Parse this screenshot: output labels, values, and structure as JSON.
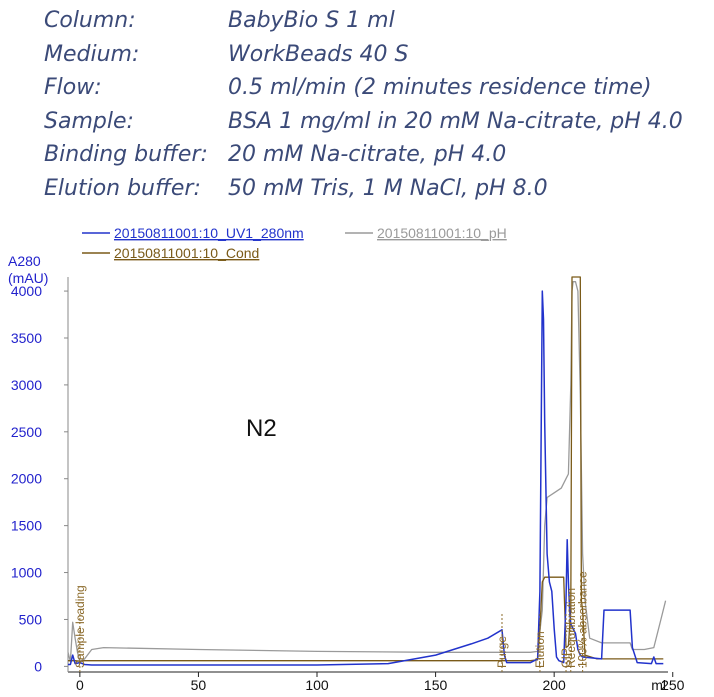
{
  "info": [
    {
      "label": "Column:",
      "value": "BabyBio S 1 ml"
    },
    {
      "label": "Medium:",
      "value": "WorkBeads 40 S"
    },
    {
      "label": "Flow:",
      "value": "0.5 ml/min (2 minutes residence time)"
    },
    {
      "label": "Sample:",
      "value": "BSA 1 mg/ml in 20 mM Na-citrate, pH 4.0"
    },
    {
      "label": "Binding buffer:",
      "value": "20 mM Na-citrate, pH 4.0"
    },
    {
      "label": "Elution buffer:",
      "value": "50 mM Tris, 1 M NaCl, pH 8.0"
    }
  ],
  "colors": {
    "uv": "#2233cc",
    "ph": "#9a9a9a",
    "cond": "#7a5a18",
    "axis": "#2222cc",
    "marker": "#8b6a2a"
  },
  "chart_data": {
    "type": "line",
    "xlabel": "ml",
    "ylabel": "A280\n(mAU)",
    "xlim": [
      -5,
      248
    ],
    "ylim": [
      -60,
      4150
    ],
    "x_ticks": [
      0,
      50,
      100,
      150,
      200,
      250
    ],
    "y_ticks": [
      0,
      500,
      1000,
      1500,
      2000,
      2500,
      3000,
      3500,
      4000
    ],
    "annotation": "N2",
    "legend": [
      {
        "series": "uv",
        "name": "20150811001:10_UV1_280nm"
      },
      {
        "series": "ph",
        "name": "20150811001:10_pH"
      },
      {
        "series": "cond",
        "name": "20150811001:10_Cond"
      }
    ],
    "markers": [
      {
        "x": 0,
        "label": "Sample loading"
      },
      {
        "x": 178,
        "label": "Purge"
      },
      {
        "x": 194,
        "label": "Elution"
      },
      {
        "x": 205,
        "label": "CIP"
      },
      {
        "x": 207,
        "label": "Reequilibration"
      },
      {
        "x": 212,
        "label": "100% absorbance"
      }
    ],
    "series": [
      {
        "key": "uv",
        "points": [
          [
            -5,
            20
          ],
          [
            -4,
            20
          ],
          [
            -3,
            120
          ],
          [
            -2,
            30
          ],
          [
            0,
            40
          ],
          [
            2,
            20
          ],
          [
            5,
            15
          ],
          [
            50,
            15
          ],
          [
            100,
            15
          ],
          [
            130,
            30
          ],
          [
            150,
            120
          ],
          [
            165,
            240
          ],
          [
            172,
            300
          ],
          [
            178,
            390
          ],
          [
            179,
            120
          ],
          [
            180,
            40
          ],
          [
            190,
            40
          ],
          [
            193,
            80
          ],
          [
            194,
            800
          ],
          [
            195,
            4000
          ],
          [
            195.5,
            3700
          ],
          [
            196,
            2600
          ],
          [
            197,
            1200
          ],
          [
            198,
            900
          ],
          [
            199,
            800
          ],
          [
            200,
            400
          ],
          [
            201,
            100
          ],
          [
            202,
            60
          ],
          [
            204,
            40
          ],
          [
            205,
            700
          ],
          [
            205.5,
            1350
          ],
          [
            206,
            900
          ],
          [
            206.5,
            600
          ],
          [
            207,
            450
          ],
          [
            209,
            350
          ],
          [
            210,
            180
          ],
          [
            211,
            120
          ],
          [
            212,
            100
          ],
          [
            220,
            80
          ],
          [
            221,
            600
          ],
          [
            232,
            600
          ],
          [
            233,
            200
          ],
          [
            235,
            40
          ],
          [
            241,
            30
          ],
          [
            242,
            100
          ],
          [
            243,
            30
          ],
          [
            246,
            30
          ]
        ]
      },
      {
        "key": "ph",
        "points": [
          [
            -5,
            150
          ],
          [
            -4,
            50
          ],
          [
            -3,
            470
          ],
          [
            -2,
            300
          ],
          [
            -1,
            150
          ],
          [
            0,
            50
          ],
          [
            2,
            80
          ],
          [
            5,
            180
          ],
          [
            10,
            200
          ],
          [
            50,
            180
          ],
          [
            100,
            160
          ],
          [
            150,
            150
          ],
          [
            180,
            150
          ],
          [
            190,
            150
          ],
          [
            193,
            160
          ],
          [
            195,
            600
          ],
          [
            196,
            1500
          ],
          [
            197,
            1800
          ],
          [
            200,
            1850
          ],
          [
            203,
            1900
          ],
          [
            205,
            2000
          ],
          [
            206,
            2050
          ],
          [
            207,
            3000
          ],
          [
            207.5,
            4000
          ],
          [
            208,
            4100
          ],
          [
            209,
            4100
          ],
          [
            210,
            4000
          ],
          [
            211,
            2900
          ],
          [
            212,
            1200
          ],
          [
            213,
            700
          ],
          [
            215,
            300
          ],
          [
            220,
            250
          ],
          [
            232,
            250
          ],
          [
            233,
            180
          ],
          [
            238,
            180
          ],
          [
            242,
            200
          ],
          [
            245,
            500
          ],
          [
            247,
            700
          ]
        ]
      },
      {
        "key": "cond",
        "points": [
          [
            -5,
            60
          ],
          [
            -2,
            60
          ],
          [
            0,
            55
          ],
          [
            2,
            60
          ],
          [
            50,
            60
          ],
          [
            100,
            60
          ],
          [
            150,
            60
          ],
          [
            180,
            60
          ],
          [
            190,
            60
          ],
          [
            193,
            70
          ],
          [
            194,
            400
          ],
          [
            195,
            900
          ],
          [
            196,
            950
          ],
          [
            204,
            950
          ],
          [
            205,
            200
          ],
          [
            206,
            220
          ],
          [
            207,
            600
          ],
          [
            207.5,
            4150
          ],
          [
            211,
            4150
          ],
          [
            211.5,
            700
          ],
          [
            212,
            600
          ],
          [
            213,
            120
          ],
          [
            218,
            80
          ],
          [
            246,
            80
          ]
        ]
      }
    ]
  }
}
